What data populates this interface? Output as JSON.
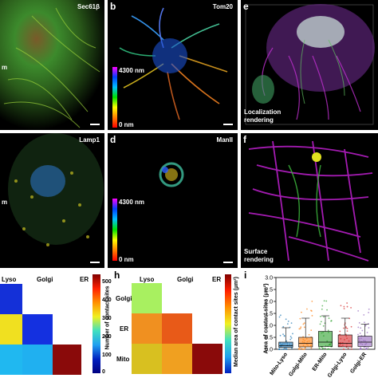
{
  "panels": {
    "a": {
      "letter": "",
      "title": "Sec61β",
      "side_label": "m"
    },
    "b": {
      "letter": "b",
      "title": "Tom20",
      "cbar_top": "4300 nm",
      "cbar_bottom": "0 nm"
    },
    "c": {
      "letter": "",
      "title": "Lamp1",
      "side_label": "m"
    },
    "d": {
      "letter": "d",
      "title": "ManII",
      "cbar_top": "4300 nm",
      "cbar_bottom": "0 nm"
    },
    "e": {
      "letter": "e",
      "caption_line1": "Localization",
      "caption_line2": "rendering"
    },
    "f": {
      "letter": "f",
      "caption_line1": "Surface",
      "caption_line2": "rendering"
    },
    "g": {
      "col_labels": [
        "Lyso",
        "Golgi",
        "ER"
      ],
      "cbar_ticks": [
        "500",
        "400",
        "300",
        "200",
        "100",
        "0"
      ],
      "cbar_title": "Number of contact sites"
    },
    "h": {
      "letter": "h",
      "col_labels": [
        "Lyso",
        "Golgi",
        "ER"
      ],
      "row_labels": [
        "Golgi",
        "ER",
        "Mito"
      ],
      "cbar_title": "Median area of contact sites (µm²)"
    },
    "i": {
      "letter": "i",
      "ylabel": "Area of contact sites (µm²)",
      "yticks": [
        "3.0",
        "2.5",
        "2.0",
        "1.5",
        "1.0",
        "0.5",
        "0.0"
      ],
      "categories": [
        "Mito-Lyso",
        "Golgi-Mito",
        "ER-Mito",
        "Golgi-Lyso",
        "Golgi-ER"
      ]
    }
  },
  "chart_data": [
    {
      "type": "heatmap",
      "panel": "g",
      "x": [
        "Lyso",
        "Golgi",
        "ER"
      ],
      "colorbar_range": [
        0,
        500
      ],
      "colorbar_title": "Number of contact sites"
    },
    {
      "type": "heatmap",
      "panel": "h",
      "x": [
        "Lyso",
        "Golgi",
        "ER"
      ],
      "y": [
        "Golgi",
        "ER",
        "Mito"
      ],
      "colorbar_title": "Median area of contact sites (µm²)"
    },
    {
      "type": "box",
      "panel": "i",
      "categories": [
        "Mito-Lyso",
        "Golgi-Mito",
        "ER-Mito",
        "Golgi-Lyso",
        "Golgi-ER"
      ],
      "ylabel": "Area of contact sites (µm²)",
      "ylim": [
        0,
        3.0
      ],
      "colors": [
        "#1f77b4",
        "#ff7f0e",
        "#2ca02c",
        "#d62728",
        "#9467bd"
      ],
      "median": [
        0.15,
        0.25,
        0.3,
        0.25,
        0.3
      ],
      "q1": [
        0.08,
        0.1,
        0.12,
        0.1,
        0.12
      ],
      "q3": [
        0.3,
        0.5,
        0.75,
        0.6,
        0.55
      ],
      "whisker_high": [
        0.9,
        1.3,
        1.4,
        1.3,
        1.05
      ]
    }
  ]
}
